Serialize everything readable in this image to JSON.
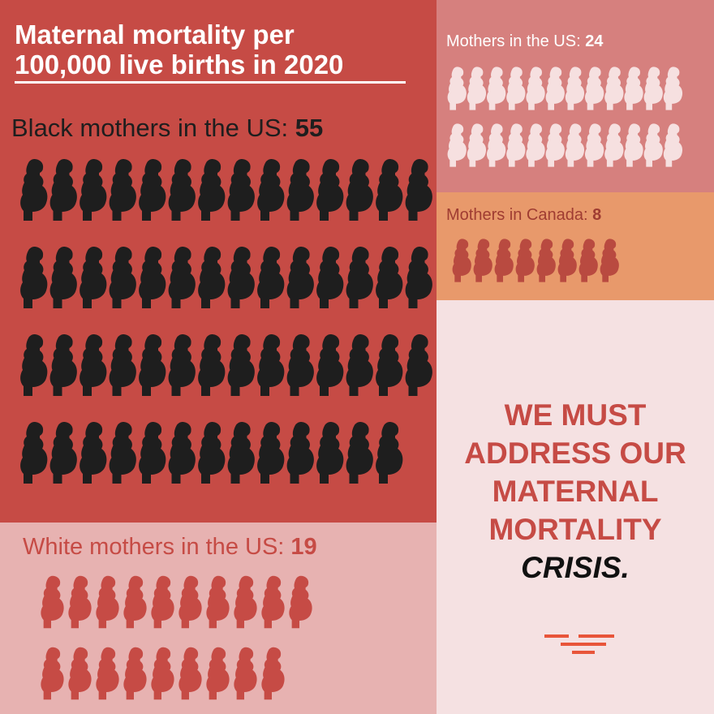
{
  "title": {
    "line1": "Maternal mortality per",
    "line2": "100,000 live births in 2020"
  },
  "panels": {
    "black_us": {
      "label": "Black mothers in the US:",
      "value": "55",
      "count": 55,
      "icon_color": "#1e1e1e",
      "bg": "#c64b45"
    },
    "white_us": {
      "label": "White mothers in the US:",
      "value": "19",
      "count": 19,
      "icon_color": "#c64b45",
      "bg": "#e7b2b1",
      "text_color": "#c64b45"
    },
    "all_us": {
      "label": "Mothers in the US:",
      "value": "24",
      "count": 24,
      "icon_color": "#f6e0e0",
      "bg": "#d6807e"
    },
    "canada": {
      "label": "Mothers in Canada:",
      "value": "8",
      "count": 8,
      "icon_color": "#b94a40",
      "bg": "#e8996b",
      "text_color": "#9f3c32"
    }
  },
  "cta": {
    "lines": [
      "WE MUST",
      "ADDRESS OUR",
      "MATERNAL",
      "MORTALITY"
    ],
    "emphasis": "CRISIS.",
    "color": "#c64b45",
    "bg": "#f5e1e2"
  },
  "logo": {
    "icon": "brand-logo-icon",
    "color": "#e8553a"
  },
  "icon_name": "pregnant-woman-icon"
}
